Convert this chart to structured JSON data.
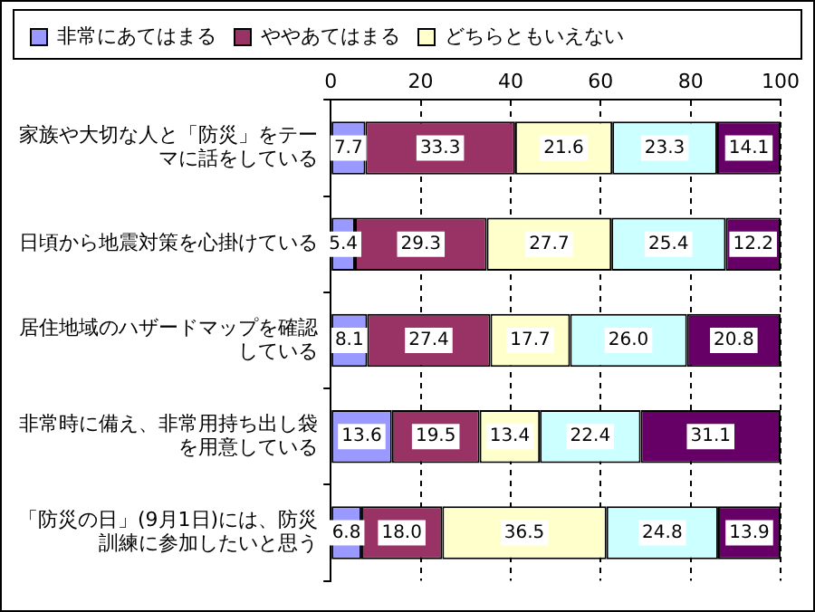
{
  "chart_data": {
    "type": "bar",
    "orientation": "horizontal",
    "stacked": true,
    "categories": [
      "家族や大切な人と「防災」をテーマに話をしている",
      "日頃から地震対策を心掛けている",
      "居住地域のハザードマップを確認している",
      "非常時に備え、非常用持ち出し袋を用意している",
      "「防災の日」(9月1日)には、防災訓練に参加したいと思う"
    ],
    "series": [
      {
        "name": "非常にあてはまる",
        "color": "#9999ff",
        "values": [
          7.7,
          5.4,
          8.1,
          13.6,
          6.8
        ],
        "value_labels": [
          "7.7",
          "5.4",
          "8.1",
          "13.6",
          "6.8"
        ]
      },
      {
        "name": "ややあてはまる",
        "color": "#993366",
        "values": [
          33.3,
          29.3,
          27.4,
          19.5,
          18.0
        ],
        "value_labels": [
          "33.3",
          "29.3",
          "27.4",
          "19.5",
          "18.0"
        ]
      },
      {
        "name": "どちらともいえない",
        "color": "#ffffcc",
        "values": [
          21.6,
          27.7,
          17.7,
          13.4,
          36.5
        ],
        "value_labels": [
          "21.6",
          "27.7",
          "17.7",
          "13.4",
          "36.5"
        ]
      },
      {
        "color": "#ccffff",
        "values": [
          23.3,
          25.4,
          26.0,
          22.4,
          24.8
        ],
        "value_labels": [
          "23.3",
          "25.4",
          "26.0",
          "22.4",
          "24.8"
        ]
      },
      {
        "color": "#660066",
        "values": [
          14.1,
          12.2,
          20.8,
          31.1,
          13.9
        ],
        "value_labels": [
          "14.1",
          "12.2",
          "20.8",
          "31.1",
          "13.9"
        ]
      }
    ],
    "xlim": [
      0,
      100
    ],
    "xticks": [
      0,
      20,
      40,
      60,
      80,
      100
    ],
    "grid": "x",
    "legend": "top"
  }
}
